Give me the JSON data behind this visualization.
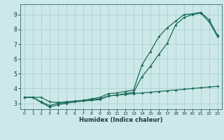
{
  "title": "",
  "xlabel": "Humidex (Indice chaleur)",
  "bg_color": "#cce8e8",
  "grid_color": "#aacccc",
  "line_color": "#1a6b5a",
  "xlim": [
    -0.5,
    23.5
  ],
  "ylim": [
    2.6,
    9.7
  ],
  "xticks": [
    0,
    1,
    2,
    3,
    4,
    5,
    6,
    7,
    8,
    9,
    10,
    11,
    12,
    13,
    14,
    15,
    16,
    17,
    18,
    19,
    20,
    21,
    22,
    23
  ],
  "yticks": [
    3,
    4,
    5,
    6,
    7,
    8,
    9
  ],
  "line1_x": [
    0,
    1,
    2,
    3,
    4,
    5,
    6,
    7,
    8,
    9,
    10,
    11,
    12,
    13,
    14,
    15,
    16,
    17,
    18,
    19,
    20,
    21,
    22,
    23
  ],
  "line1_y": [
    3.4,
    3.4,
    3.4,
    3.1,
    3.05,
    3.1,
    3.15,
    3.2,
    3.25,
    3.3,
    3.5,
    3.55,
    3.6,
    3.65,
    3.7,
    3.75,
    3.8,
    3.85,
    3.9,
    3.95,
    4.0,
    4.05,
    4.1,
    4.15
  ],
  "line2_x": [
    0,
    1,
    2,
    3,
    4,
    5,
    6,
    7,
    8,
    9,
    10,
    11,
    12,
    13,
    14,
    15,
    16,
    17,
    18,
    19,
    20,
    21,
    22,
    23
  ],
  "line2_y": [
    3.4,
    3.4,
    3.1,
    2.85,
    3.0,
    3.05,
    3.1,
    3.15,
    3.2,
    3.25,
    3.5,
    3.55,
    3.65,
    3.75,
    4.8,
    5.5,
    6.3,
    7.05,
    8.3,
    8.8,
    9.0,
    9.1,
    8.5,
    7.5
  ],
  "line3_x": [
    0,
    1,
    2,
    3,
    4,
    5,
    6,
    7,
    8,
    9,
    10,
    11,
    12,
    13,
    14,
    15,
    16,
    17,
    18,
    19,
    20,
    21,
    22,
    23
  ],
  "line3_y": [
    3.4,
    3.4,
    3.05,
    2.75,
    2.9,
    3.0,
    3.1,
    3.2,
    3.3,
    3.4,
    3.65,
    3.7,
    3.8,
    3.9,
    5.6,
    6.5,
    7.5,
    8.1,
    8.55,
    9.0,
    9.05,
    9.15,
    8.65,
    7.6
  ]
}
